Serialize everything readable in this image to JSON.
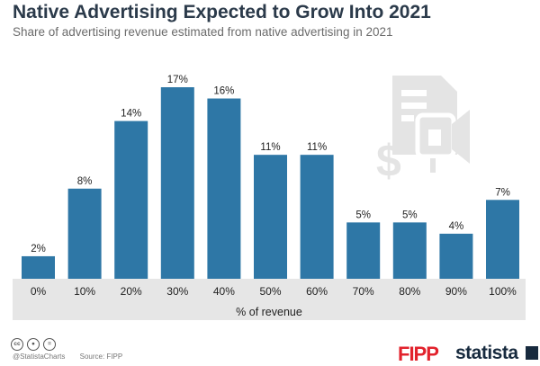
{
  "header": {
    "title": "Native Advertising Expected to Grow Into 2021",
    "subtitle": "Share of advertising revenue estimated from native advertising in 2021"
  },
  "chart_data": {
    "type": "bar",
    "categories": [
      "0%",
      "10%",
      "20%",
      "30%",
      "40%",
      "50%",
      "60%",
      "70%",
      "80%",
      "90%",
      "100%"
    ],
    "values": [
      2,
      8,
      14,
      17,
      16,
      11,
      11,
      5,
      5,
      4,
      7
    ],
    "value_labels": [
      "2%",
      "8%",
      "14%",
      "17%",
      "16%",
      "11%",
      "11%",
      "5%",
      "5%",
      "4%",
      "7%"
    ],
    "title": "Native Advertising Expected to Grow Into 2021",
    "subtitle": "Share of advertising revenue estimated from native advertising in 2021",
    "xlabel": "% of revenue",
    "ylabel": "",
    "ylim": [
      0,
      17
    ],
    "grid": false,
    "bar_color": "#2e77a6",
    "axis_band_color": "#e6e6e6"
  },
  "footer": {
    "handle": "@StatistaCharts",
    "source": "Source: FIPP",
    "brand_fipp": "FIPP",
    "brand_statista": "statista"
  },
  "icons": [
    "cc-icon",
    "person-icon",
    "equals-icon",
    "dollar-icon",
    "document-icon",
    "megaphone-icon"
  ]
}
